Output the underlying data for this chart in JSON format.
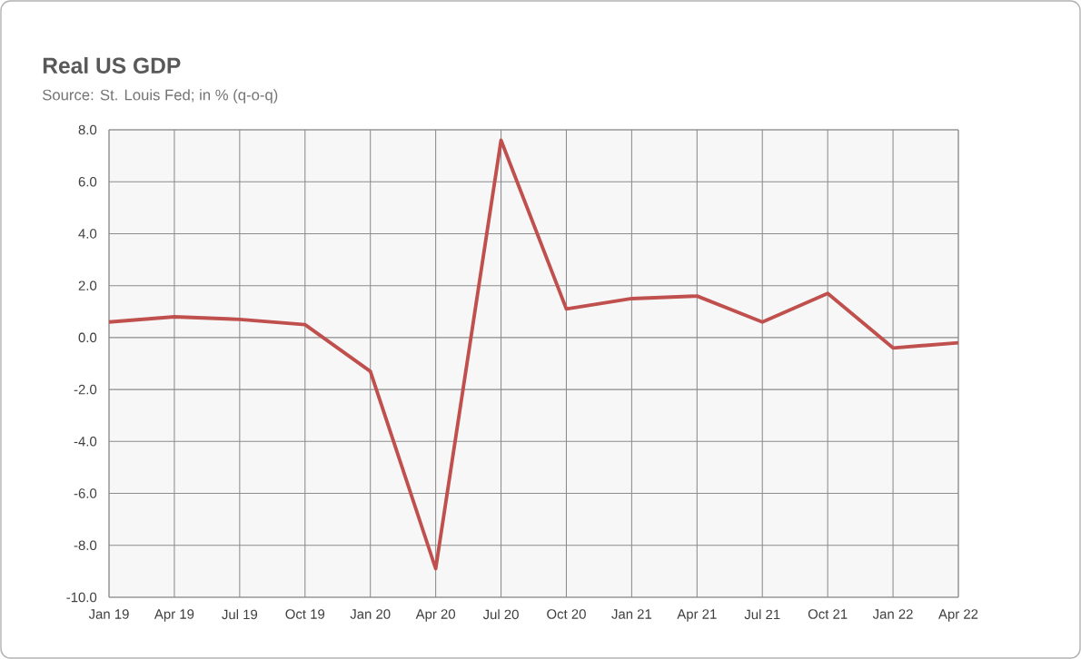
{
  "chart_data": {
    "type": "line",
    "title": "Real US GDP",
    "subtitle": "Source: St. Louis Fed; in % (q-o-q)",
    "categories": [
      "Jan 19",
      "Apr 19",
      "Jul 19",
      "Oct 19",
      "Jan 20",
      "Apr 20",
      "Jul 20",
      "Oct 20",
      "Jan 21",
      "Apr 21",
      "Jul 21",
      "Oct 21",
      "Jan 22",
      "Apr 22"
    ],
    "series": [
      {
        "color": "#c0504d",
        "values": [
          0.6,
          0.8,
          0.7,
          0.5,
          -1.3,
          -8.9,
          7.6,
          1.1,
          1.5,
          1.6,
          0.6,
          1.7,
          -0.4,
          -0.2
        ]
      }
    ],
    "ylim": [
      -10,
      8
    ],
    "yticks": [
      {
        "value": -10,
        "label": "-10.0"
      },
      {
        "value": -8,
        "label": "-8.0"
      },
      {
        "value": -6,
        "label": "-6.0"
      },
      {
        "value": -4,
        "label": "-4.0"
      },
      {
        "value": -2,
        "label": "-2.0"
      },
      {
        "value": 0,
        "label": "0.0"
      },
      {
        "value": 2,
        "label": "2.0"
      },
      {
        "value": 4,
        "label": "4.0"
      },
      {
        "value": 6,
        "label": "6.0"
      },
      {
        "value": 8,
        "label": "8.0"
      }
    ],
    "grid": true,
    "marker": "none",
    "line_style": "solid"
  }
}
